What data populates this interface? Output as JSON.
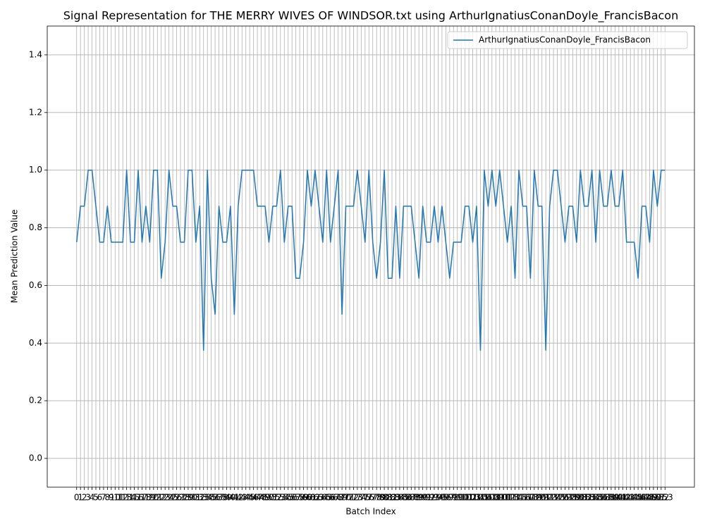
{
  "chart_data": {
    "type": "line",
    "title": "Signal Representation for THE MERRY WIVES OF WINDSOR.txt using ArthurIgnatiusConanDoyle_FrancisBacon",
    "xlabel": "Batch Index",
    "ylabel": "Mean Prediction Value",
    "x": [
      0,
      1,
      2,
      3,
      4,
      5,
      6,
      7,
      8,
      9,
      10,
      11,
      12,
      13,
      14,
      15,
      16,
      17,
      18,
      19,
      20,
      21,
      22,
      23,
      24,
      25,
      26,
      27,
      28,
      29,
      30,
      31,
      32,
      33,
      34,
      35,
      36,
      37,
      38,
      39,
      40,
      41,
      42,
      43,
      44,
      45,
      46,
      47,
      48,
      49,
      50,
      51,
      52,
      53,
      54,
      55,
      56,
      57,
      58,
      59,
      60,
      61,
      62,
      63,
      64,
      65,
      66,
      67,
      68,
      69,
      70,
      71,
      72,
      73,
      74,
      75,
      76,
      77,
      78,
      79,
      80,
      81,
      82,
      83,
      84,
      85,
      86,
      87,
      88,
      89,
      90,
      91,
      92,
      93,
      94,
      95,
      96,
      97,
      98,
      99,
      100,
      101,
      102,
      103,
      104,
      105,
      106,
      107,
      108,
      109,
      110,
      111,
      112,
      113,
      114,
      115,
      116,
      117,
      118,
      119,
      120,
      121,
      122,
      123,
      124,
      125,
      126,
      127,
      128,
      129,
      130,
      131,
      132,
      133,
      134,
      135,
      136,
      137,
      138,
      139,
      140,
      141,
      142,
      143,
      144,
      145,
      146,
      147,
      148,
      149,
      150,
      151,
      152,
      153
    ],
    "series": [
      {
        "name": "ArthurIgnatiusConanDoyle_FrancisBacon",
        "color": "#1f77b4",
        "values": [
          0.75,
          0.875,
          0.875,
          1.0,
          1.0,
          0.875,
          0.75,
          0.75,
          0.875,
          0.75,
          0.75,
          0.75,
          0.75,
          1.0,
          0.75,
          0.75,
          1.0,
          0.75,
          0.875,
          0.75,
          1.0,
          1.0,
          0.625,
          0.75,
          1.0,
          0.875,
          0.875,
          0.75,
          0.75,
          1.0,
          1.0,
          0.75,
          0.875,
          0.375,
          1.0,
          0.625,
          0.5,
          0.875,
          0.75,
          0.75,
          0.875,
          0.5,
          0.875,
          1.0,
          1.0,
          1.0,
          1.0,
          0.875,
          0.875,
          0.875,
          0.75,
          0.875,
          0.875,
          1.0,
          0.75,
          0.875,
          0.875,
          0.625,
          0.625,
          0.75,
          1.0,
          0.875,
          1.0,
          0.875,
          0.75,
          1.0,
          0.75,
          0.875,
          1.0,
          0.5,
          0.875,
          0.875,
          0.875,
          1.0,
          0.875,
          0.75,
          1.0,
          0.75,
          0.625,
          0.75,
          1.0,
          0.625,
          0.625,
          0.875,
          0.625,
          0.875,
          0.875,
          0.875,
          0.75,
          0.625,
          0.875,
          0.75,
          0.75,
          0.875,
          0.75,
          0.875,
          0.75,
          0.625,
          0.75,
          0.75,
          0.75,
          0.875,
          0.875,
          0.75,
          0.875,
          0.375,
          1.0,
          0.875,
          1.0,
          0.875,
          1.0,
          0.875,
          0.75,
          0.875,
          0.625,
          1.0,
          0.875,
          0.875,
          0.625,
          1.0,
          0.875,
          0.875,
          0.375,
          0.875,
          1.0,
          1.0,
          0.875,
          0.75,
          0.875,
          0.875,
          0.75,
          1.0,
          0.875,
          0.875,
          1.0,
          0.75,
          1.0,
          0.875,
          0.875,
          1.0,
          0.875,
          0.875,
          1.0,
          0.75,
          0.75,
          0.75,
          0.625,
          0.875,
          0.875,
          0.75,
          1.0,
          0.875,
          1.0,
          1.0
        ]
      }
    ],
    "xlim": [
      -7.65,
      160.65
    ],
    "xticks": [
      0,
      1,
      2,
      3,
      4,
      5,
      6,
      7,
      8,
      9,
      10,
      11,
      12,
      13,
      14,
      15,
      16,
      17,
      18,
      19,
      20,
      21,
      22,
      23,
      24,
      25,
      26,
      27,
      28,
      29,
      30,
      31,
      32,
      33,
      34,
      35,
      36,
      37,
      38,
      39,
      40,
      41,
      42,
      43,
      44,
      45,
      46,
      47,
      48,
      49,
      50,
      51,
      52,
      53,
      54,
      55,
      56,
      57,
      58,
      59,
      60,
      61,
      62,
      63,
      64,
      65,
      66,
      67,
      68,
      69,
      70,
      71,
      72,
      73,
      74,
      75,
      76,
      77,
      78,
      79,
      80,
      81,
      82,
      83,
      84,
      85,
      86,
      87,
      88,
      89,
      90,
      91,
      92,
      93,
      94,
      95,
      96,
      97,
      98,
      99,
      100,
      101,
      102,
      103,
      104,
      105,
      106,
      107,
      108,
      109,
      110,
      111,
      112,
      113,
      114,
      115,
      116,
      117,
      118,
      119,
      120,
      121,
      122,
      123,
      124,
      125,
      126,
      127,
      128,
      129,
      130,
      131,
      132,
      133,
      134,
      135,
      136,
      137,
      138,
      139,
      140,
      141,
      142,
      143,
      144,
      145,
      146,
      147,
      148,
      149,
      150,
      151,
      152,
      153
    ],
    "ylim": [
      -0.1,
      1.5
    ],
    "yticks": [
      {
        "value": 0,
        "label": "0.0"
      },
      0.2,
      0.4,
      0.6,
      0.8,
      {
        "value": 1,
        "label": "1.0"
      },
      1.2,
      1.4
    ],
    "grid": true,
    "legend": "upper right"
  }
}
